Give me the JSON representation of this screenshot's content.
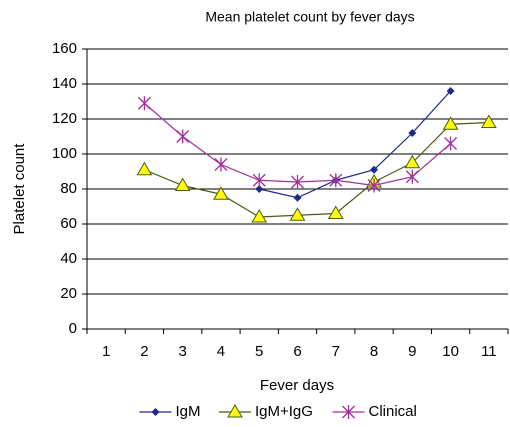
{
  "chart_data": {
    "type": "line",
    "title": "Mean platelet count by fever days",
    "x_label": "Fever days",
    "y_label": "Platelet count",
    "categories": [
      "1",
      "2",
      "3",
      "4",
      "5",
      "6",
      "7",
      "8",
      "9",
      "10",
      "11"
    ],
    "series": [
      {
        "name": "IgM",
        "color": "#1c2a8a",
        "marker": "diamond",
        "marker_color": "#1c2a8a",
        "values": [
          null,
          null,
          null,
          null,
          80,
          75,
          85,
          91,
          112,
          136,
          null
        ]
      },
      {
        "name": "IgM+IgG",
        "color": "#4b5a16",
        "marker": "triangle",
        "marker_color": "#ffff00",
        "values": [
          null,
          91,
          82,
          77,
          64,
          65,
          66,
          84,
          95,
          117,
          118
        ]
      },
      {
        "name": "Clinical",
        "color": "#a0309a",
        "marker": "star",
        "marker_color": "#a0309a",
        "values": [
          null,
          129,
          110,
          94,
          85,
          84,
          85,
          82,
          87,
          106,
          null
        ]
      }
    ],
    "ylim": [
      0,
      160
    ],
    "yticks": [
      0,
      20,
      40,
      60,
      80,
      100,
      120,
      140,
      160
    ],
    "grid": true,
    "legend": "bottom"
  }
}
